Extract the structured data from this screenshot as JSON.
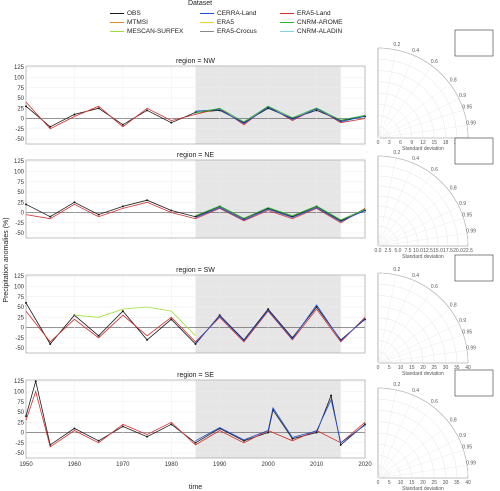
{
  "legend": {
    "title": "Dataset",
    "items": [
      {
        "name": "OBS",
        "color": "#1a1a1a"
      },
      {
        "name": "CERRA-Land",
        "color": "#1f4fd6"
      },
      {
        "name": "ERA5-Land",
        "color": "#d62f2f"
      },
      {
        "name": "MTMSI",
        "color": "#e08a1a"
      },
      {
        "name": "ERA5",
        "color": "#f0d21f"
      },
      {
        "name": "CNRM-AROME",
        "color": "#2bb52b"
      },
      {
        "name": "MESCAN-SURFEX",
        "color": "#9ee03a"
      },
      {
        "name": "ERA5-Crocus",
        "color": "#8a8a8a"
      },
      {
        "name": "CNRM-ALADIN",
        "color": "#7fd0e8"
      }
    ]
  },
  "y_axis_label": "Precipitation anomalies (%)",
  "x_axis_label": "time",
  "taylor_axis_label": "Standard deviation",
  "taylor_corr_label": "Correlation",
  "shaded_period": [
    1985,
    2015
  ],
  "chart_data": [
    {
      "type": "line",
      "title": "region = NW",
      "xlim": [
        1950,
        2020
      ],
      "ylim": [
        -62,
        128
      ],
      "yticks": [
        -50,
        -25,
        0,
        25,
        50,
        75,
        100,
        125
      ],
      "xticks": [
        1950,
        1960,
        1970,
        1980,
        1990,
        2000,
        2010,
        2020
      ],
      "series": [
        {
          "name": "OBS",
          "x": [
            1950,
            1955,
            1960,
            1965,
            1970,
            1975,
            1980,
            1985,
            1990,
            1995,
            2000,
            2005,
            2010,
            2015,
            2020
          ],
          "values": [
            30,
            -20,
            10,
            25,
            -15,
            20,
            -10,
            15,
            20,
            -10,
            25,
            0,
            20,
            -5,
            5
          ]
        },
        {
          "name": "ERA5-Land",
          "x": [
            1950,
            1955,
            1960,
            1965,
            1970,
            1975,
            1980,
            1985,
            1990,
            1995,
            2000,
            2005,
            2010,
            2015,
            2020
          ],
          "values": [
            40,
            -25,
            5,
            30,
            -20,
            25,
            -5,
            10,
            25,
            -15,
            30,
            -5,
            25,
            -10,
            0
          ]
        },
        {
          "name": "CERRA-Land",
          "x": [
            1985,
            1990,
            1995,
            2000,
            2005,
            2010,
            2015,
            2020
          ],
          "values": [
            18,
            22,
            -12,
            28,
            -2,
            24,
            -8,
            6
          ]
        },
        {
          "name": "CNRM-AROME",
          "x": [
            1985,
            1990,
            1995,
            2000,
            2005,
            2010,
            2015,
            2020
          ],
          "values": [
            14,
            25,
            -8,
            30,
            2,
            26,
            -4,
            8
          ]
        }
      ]
    },
    {
      "type": "line",
      "title": "region = NE",
      "xlim": [
        1950,
        2020
      ],
      "ylim": [
        -62,
        128
      ],
      "yticks": [
        -50,
        -25,
        0,
        25,
        50,
        75,
        100,
        125
      ],
      "xticks": [
        1950,
        1960,
        1970,
        1980,
        1990,
        2000,
        2010,
        2020
      ],
      "series": [
        {
          "name": "OBS",
          "x": [
            1950,
            1955,
            1960,
            1965,
            1970,
            1975,
            1980,
            1985,
            1990,
            1995,
            2000,
            2005,
            2010,
            2015,
            2020
          ],
          "values": [
            20,
            -10,
            25,
            -5,
            15,
            30,
            5,
            -10,
            15,
            -15,
            10,
            -10,
            15,
            -20,
            5
          ]
        },
        {
          "name": "ERA5-Land",
          "x": [
            1950,
            1955,
            1960,
            1965,
            1970,
            1975,
            1980,
            1985,
            1990,
            1995,
            2000,
            2005,
            2010,
            2015,
            2020
          ],
          "values": [
            -5,
            -15,
            20,
            -10,
            10,
            25,
            0,
            -15,
            10,
            -20,
            5,
            -15,
            10,
            -25,
            10
          ]
        },
        {
          "name": "CERRA-Land",
          "x": [
            1985,
            1990,
            1995,
            2000,
            2005,
            2010,
            2015,
            2020
          ],
          "values": [
            -12,
            12,
            -18,
            8,
            -12,
            12,
            -22,
            6
          ]
        },
        {
          "name": "CNRM-AROME",
          "x": [
            1985,
            1990,
            1995,
            2000,
            2005,
            2010,
            2015,
            2020
          ],
          "values": [
            -8,
            16,
            -14,
            12,
            -8,
            16,
            -18,
            8
          ]
        }
      ]
    },
    {
      "type": "line",
      "title": "region = SW",
      "xlim": [
        1950,
        2020
      ],
      "ylim": [
        -62,
        128
      ],
      "yticks": [
        -50,
        -25,
        0,
        25,
        50,
        75,
        100,
        125
      ],
      "xticks": [
        1950,
        1960,
        1970,
        1980,
        1990,
        2000,
        2010,
        2020
      ],
      "series": [
        {
          "name": "OBS",
          "x": [
            1950,
            1955,
            1960,
            1965,
            1970,
            1975,
            1980,
            1985,
            1990,
            1995,
            2000,
            2005,
            2010,
            2015,
            2020
          ],
          "values": [
            60,
            -40,
            30,
            -20,
            40,
            -30,
            20,
            -40,
            30,
            -30,
            45,
            -25,
            50,
            -30,
            20
          ]
        },
        {
          "name": "ERA5-Land",
          "x": [
            1950,
            1955,
            1960,
            1965,
            1970,
            1975,
            1980,
            1985,
            1990,
            1995,
            2000,
            2005,
            2010,
            2015,
            2020
          ],
          "values": [
            40,
            -35,
            20,
            -25,
            30,
            -20,
            25,
            -35,
            25,
            -35,
            40,
            -30,
            45,
            -35,
            25
          ]
        },
        {
          "name": "MESCAN-SURFEX",
          "x": [
            1960,
            1965,
            1970,
            1975,
            1980,
            1985
          ],
          "values": [
            30,
            25,
            45,
            50,
            40,
            -20
          ]
        },
        {
          "name": "CERRA-Land",
          "x": [
            1985,
            1990,
            1995,
            2000,
            2005,
            2010,
            2015,
            2020
          ],
          "values": [
            -38,
            28,
            -32,
            42,
            -28,
            55,
            -32,
            22
          ]
        }
      ]
    },
    {
      "type": "line",
      "title": "region = SE",
      "xlim": [
        1950,
        2020
      ],
      "ylim": [
        -62,
        128
      ],
      "yticks": [
        -50,
        -25,
        0,
        25,
        50,
        75,
        100,
        125
      ],
      "xticks": [
        1950,
        1960,
        1970,
        1980,
        1990,
        2000,
        2010,
        2020
      ],
      "series": [
        {
          "name": "OBS",
          "x": [
            1950,
            1952,
            1955,
            1960,
            1965,
            1970,
            1975,
            1980,
            1985,
            1990,
            1995,
            2000,
            2001,
            2005,
            2010,
            2013,
            2015,
            2020
          ],
          "values": [
            40,
            125,
            -30,
            10,
            -20,
            15,
            -10,
            20,
            -25,
            10,
            -20,
            0,
            55,
            -15,
            0,
            90,
            -30,
            20
          ]
        },
        {
          "name": "ERA5-Land",
          "x": [
            1950,
            1952,
            1955,
            1960,
            1965,
            1970,
            1975,
            1980,
            1985,
            1990,
            1995,
            2000,
            2005,
            2010,
            2015,
            2020
          ],
          "values": [
            30,
            100,
            -35,
            5,
            -25,
            20,
            -5,
            25,
            -30,
            5,
            -25,
            5,
            -20,
            5,
            -25,
            25
          ]
        },
        {
          "name": "CERRA-Land",
          "x": [
            1985,
            1990,
            1995,
            2000,
            2001,
            2005,
            2010,
            2013,
            2015,
            2020
          ],
          "values": [
            -20,
            12,
            -18,
            5,
            60,
            -12,
            4,
            80,
            -25,
            18
          ]
        }
      ]
    }
  ],
  "taylor": [
    {
      "region": "NW",
      "ticks": [
        "0",
        "3",
        "6",
        "9",
        "12",
        "15",
        "18",
        "21",
        "24"
      ],
      "corr": [
        "0.2",
        "0.4",
        "0.6",
        "0.8",
        "0.9",
        "0.95",
        "0.99"
      ]
    },
    {
      "region": "NE",
      "ticks": [
        "0.0",
        "2.5",
        "5.0",
        "7.5",
        "10.0",
        "12.5",
        "15.0",
        "17.5",
        "20.0",
        "22.5"
      ],
      "corr": [
        "0.2",
        "0.4",
        "0.6",
        "0.8",
        "0.9",
        "0.95",
        "0.99"
      ]
    },
    {
      "region": "SW",
      "ticks": [
        "0",
        "5",
        "10",
        "15",
        "20",
        "25",
        "30",
        "35",
        "40"
      ],
      "corr": [
        "0.2",
        "0.4",
        "0.6",
        "0.8",
        "0.9",
        "0.95",
        "0.99"
      ]
    },
    {
      "region": "SE",
      "ticks": [
        "0",
        "5",
        "10",
        "15",
        "20",
        "25",
        "30",
        "35",
        "40"
      ],
      "corr": [
        "0.2",
        "0.4",
        "0.6",
        "0.8",
        "0.9",
        "0.95",
        "0.99"
      ]
    }
  ]
}
